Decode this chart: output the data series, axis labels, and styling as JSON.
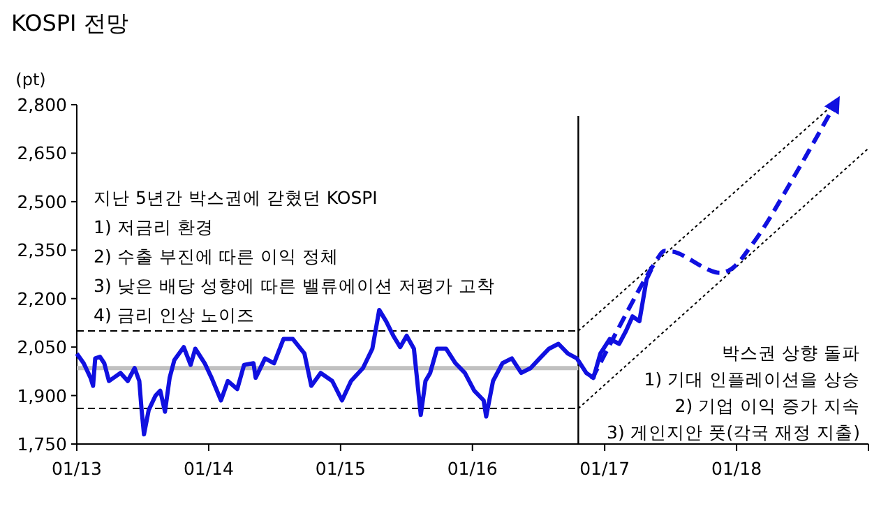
{
  "chart_data": {
    "type": "line",
    "title": "KOSPI 전망",
    "ylabel": "(pt)",
    "xlim": [
      "2013-01",
      "2019-01"
    ],
    "xticks": [
      {
        "value": "2013-01",
        "label": "01/13"
      },
      {
        "value": "2014-01",
        "label": "01/14"
      },
      {
        "value": "2015-01",
        "label": "01/15"
      },
      {
        "value": "2016-01",
        "label": "01/16"
      },
      {
        "value": "2017-01",
        "label": "01/17"
      },
      {
        "value": "2018-01",
        "label": "01/18"
      },
      {
        "value": "2019-01",
        "label": null
      }
    ],
    "ylim": [
      1750,
      2800
    ],
    "yticks": [
      {
        "value": 1750,
        "label": "1,750"
      },
      {
        "value": 1900,
        "label": "1,900"
      },
      {
        "value": 2050,
        "label": "2,050"
      },
      {
        "value": 2200,
        "label": "2,200"
      },
      {
        "value": 2350,
        "label": "2,350"
      },
      {
        "value": 2500,
        "label": "2,500"
      },
      {
        "value": 2650,
        "label": "2,650"
      },
      {
        "value": 2800,
        "label": "2,800"
      }
    ],
    "ref_lines": [
      {
        "axis": "x",
        "value": "2016-10-20",
        "color": "#000000",
        "line_style": "solid"
      }
    ],
    "series": [
      {
        "color": "#c0c0c0",
        "line_style": "solid",
        "x": [
          "2013-01-01",
          "2016-10-20"
        ],
        "values": [
          1985,
          1985
        ]
      },
      {
        "color": "#000000",
        "line_style": "dashed",
        "x": [
          "2013-01-01",
          "2016-10-20"
        ],
        "values": [
          2100,
          2100
        ]
      },
      {
        "color": "#000000",
        "line_style": "dashed",
        "x": [
          "2013-01-01",
          "2016-10-20"
        ],
        "values": [
          1860,
          1860
        ]
      },
      {
        "color": "#000000",
        "line_style": "dotted",
        "x": [
          "2016-10-20",
          "2018-09-25"
        ],
        "values": [
          2100,
          2800
        ]
      },
      {
        "color": "#000000",
        "line_style": "dotted",
        "x": [
          "2016-10-20",
          "2019-01-01"
        ],
        "values": [
          1860,
          2665
        ]
      },
      {
        "color": "#1010e0",
        "line_style": "solid",
        "x": [
          "2013-01-01",
          "2013-01-20",
          "2013-02-08",
          "2013-02-15",
          "2013-02-21",
          "2013-03-06",
          "2013-03-18",
          "2013-03-31",
          "2013-04-13",
          "2013-05-02",
          "2013-05-22",
          "2013-06-10",
          "2013-06-23",
          "2013-06-29",
          "2013-07-06",
          "2013-07-19",
          "2013-08-07",
          "2013-08-20",
          "2013-09-02",
          "2013-09-15",
          "2013-09-28",
          "2013-10-24",
          "2013-11-12",
          "2013-11-25",
          "2013-12-21",
          "2014-01-09",
          "2014-02-04",
          "2014-02-23",
          "2014-03-21",
          "2014-04-09",
          "2014-05-05",
          "2014-05-11",
          "2014-06-06",
          "2014-07-01",
          "2014-07-27",
          "2014-08-22",
          "2014-09-23",
          "2014-10-12",
          "2014-11-07",
          "2014-12-09",
          "2015-01-05",
          "2015-01-30",
          "2015-03-04",
          "2015-03-30",
          "2015-04-18",
          "2015-05-07",
          "2015-05-27",
          "2015-06-15",
          "2015-07-03",
          "2015-07-23",
          "2015-08-11",
          "2015-08-24",
          "2015-09-06",
          "2015-09-25",
          "2015-10-20",
          "2015-11-15",
          "2015-12-11",
          "2016-01-06",
          "2016-02-01",
          "2016-02-08",
          "2016-02-27",
          "2016-03-24",
          "2016-04-19",
          "2016-05-15",
          "2016-06-10",
          "2016-07-05",
          "2016-07-31",
          "2016-08-26",
          "2016-09-21",
          "2016-10-16",
          "2016-11-11",
          "2016-12-01",
          "2016-12-20",
          "2017-01-15",
          "2017-02-10",
          "2017-03-01",
          "2017-03-19",
          "2017-04-07",
          "2017-04-27",
          "2017-05-10"
        ],
        "values": [
          2030,
          2000,
          1955,
          1930,
          2015,
          2020,
          2000,
          1945,
          1955,
          1970,
          1945,
          1985,
          1945,
          1860,
          1780,
          1855,
          1900,
          1915,
          1850,
          1955,
          2010,
          2050,
          1995,
          2045,
          2000,
          1955,
          1885,
          1945,
          1920,
          1995,
          2000,
          1955,
          2015,
          2000,
          2075,
          2075,
          2030,
          1930,
          1970,
          1945,
          1885,
          1945,
          1985,
          2045,
          2165,
          2130,
          2085,
          2050,
          2085,
          2045,
          1840,
          1945,
          1970,
          2045,
          2045,
          2000,
          1970,
          1915,
          1885,
          1835,
          1945,
          2000,
          2015,
          1970,
          1985,
          2015,
          2045,
          2060,
          2030,
          2015,
          1970,
          1955,
          2030,
          2075,
          2060,
          2100,
          2145,
          2130,
          2260,
          2290
        ]
      },
      {
        "color": "#1010e0",
        "line_style": "dashed",
        "x": [
          "2016-11-26",
          "2017-05-11",
          "2017-07-08",
          "2017-11-20",
          "2018-02-18",
          "2018-06-13",
          "2018-09-30"
        ],
        "values": [
          1950,
          2295,
          2345,
          2280,
          2375,
          2585,
          2800
        ]
      }
    ],
    "annotations": [
      "지난 5년간 박스권에 갇혔던 KOSPI\n1) 저금리 환경\n2) 수출 부진에 따른 이익 정체\n3) 낮은 배당 성향에 따른 밸류에이션 저평가 고착\n4) 금리 인상 노이즈",
      "박스권 상향 돌파\n1) 기대 인플레이션을 상승\n2) 기업 이익 증가 지속\n3) 게인지안 풋(각국 재정 지출)"
    ]
  }
}
